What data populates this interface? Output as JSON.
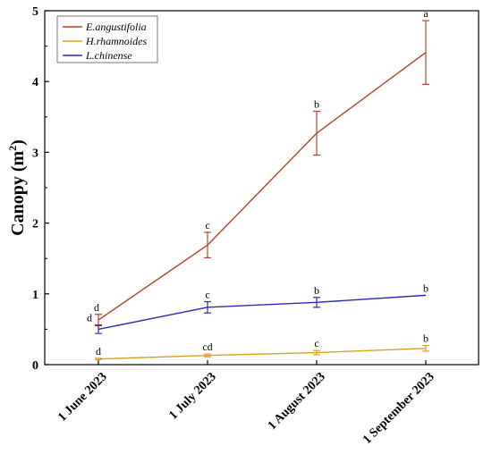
{
  "chart_data": {
    "type": "line",
    "title": "",
    "xlabel": "",
    "ylabel": "Canopy (m²)",
    "ylabel_main": "Canopy (m",
    "ylabel_sup": "2",
    "ylabel_close": ")",
    "categories": [
      "1 June 2023",
      "1 July 2023",
      "1 August 2023",
      "1 September 2023"
    ],
    "ylim": [
      0,
      5
    ],
    "yticks": [
      0,
      1,
      2,
      3,
      4,
      5
    ],
    "grid": false,
    "legend_position": "top-left",
    "series": [
      {
        "name": "E.angustifolia",
        "color": "#b5422a",
        "values": [
          0.63,
          1.69,
          3.27,
          4.41
        ],
        "errors": [
          0.08,
          0.18,
          0.31,
          0.45
        ],
        "labels": [
          "d",
          "c",
          "b",
          "a"
        ]
      },
      {
        "name": "H.rhamnoides",
        "color": "#d9a325",
        "values": [
          0.08,
          0.13,
          0.17,
          0.23
        ],
        "errors": [
          0.01,
          0.02,
          0.03,
          0.04
        ],
        "labels": [
          "d",
          "cd",
          "c",
          "b"
        ]
      },
      {
        "name": "L.chinense",
        "color": "#2b2bb8",
        "values": [
          0.5,
          0.81,
          0.88,
          0.98
        ],
        "errors": [
          0.06,
          0.08,
          0.07,
          0.0
        ],
        "labels": [
          "d",
          "c",
          "b",
          "b"
        ]
      }
    ]
  }
}
